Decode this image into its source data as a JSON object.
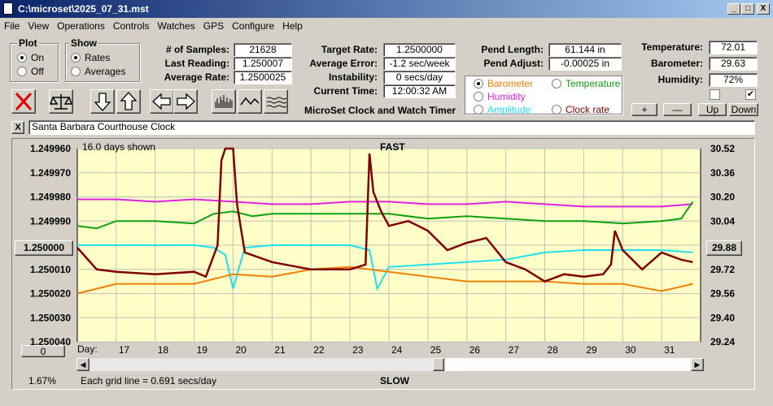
{
  "window": {
    "title": "C:\\microset\\2025_07_31.mst",
    "min": "_",
    "max": "□",
    "close": "X"
  },
  "menu": [
    "File",
    "View",
    "Operations",
    "Controls",
    "Watches",
    "GPS",
    "Configure",
    "Help"
  ],
  "plot_group": {
    "title": "Plot",
    "on": "On",
    "off": "Off"
  },
  "show_group": {
    "title": "Show",
    "rates": "Rates",
    "averages": "Averages"
  },
  "stats": {
    "samples_label": "# of Samples:",
    "samples": "21628",
    "last_label": "Last Reading:",
    "last": "1.250007",
    "avg_rate_label": "Average Rate:",
    "avg_rate": "1.2500025",
    "target_label": "Target Rate:",
    "target": "1.2500000",
    "avg_err_label": "Average Error:",
    "avg_err": "-1.2 sec/week",
    "instab_label": "Instability:",
    "instab": "0 secs/day",
    "time_label": "Current Time:",
    "time": "12:00:32 AM",
    "pend_len_label": "Pend Length:",
    "pend_len": "61.144 in",
    "pend_adj_label": "Pend Adjust:",
    "pend_adj": "-0.00025 in",
    "temp_label": "Temperature:",
    "temp": "72.01",
    "baro_label": "Barometer:",
    "baro": "29.63",
    "hum_label": "Humidity:",
    "hum": "72%"
  },
  "app_name": "MicroSet Clock and Watch Timer",
  "sensor_options": {
    "barometer": "Barometer",
    "temperature": "Temperature",
    "humidity": "Humidity",
    "amplitude": "Amplitude",
    "clock_rate": "Clock rate"
  },
  "adjust_buttons": {
    "plus": "+",
    "minus": "—",
    "up": "Up",
    "down": "Down"
  },
  "watch_name": "Santa Barbara Courthouse Clock",
  "close_x": "X",
  "colors": {
    "barometer": "#f08000",
    "temperature": "#10a010",
    "humidity": "#e020e0",
    "amplitude": "#20e0f0",
    "clock_rate": "#800000",
    "plot_bg": "#ffffc8"
  },
  "chart_data": {
    "type": "line",
    "days_shown": "16.0 days shown",
    "top_label": "FAST",
    "bottom_label": "SLOW",
    "day_label": "Day:",
    "grid_note": "Each grid line = 0.691 secs/day",
    "percent": "1.67%",
    "center_button": "1.250000",
    "right_button": "29.88",
    "zero_button": "0",
    "y_left_ticks": [
      "1.249960",
      "1.249970",
      "1.249980",
      "1.249990",
      "1.250000",
      "1.250010",
      "1.250020",
      "1.250030",
      "1.250040"
    ],
    "y_right_ticks": [
      "30.52",
      "30.36",
      "30.20",
      "30.04",
      "29.88",
      "29.72",
      "29.56",
      "29.40",
      "29.24"
    ],
    "x_ticks": [
      "17",
      "18",
      "19",
      "20",
      "21",
      "22",
      "23",
      "24",
      "25",
      "26",
      "27",
      "28",
      "29",
      "30",
      "31"
    ],
    "x_range": [
      16.0,
      32.0
    ],
    "ylim_left": [
      1.24996,
      1.25004
    ],
    "series": [
      {
        "name": "Humidity",
        "key": "humidity",
        "x": [
          16,
          17,
          18,
          19,
          20,
          21,
          22,
          23,
          24,
          25,
          26,
          27,
          28,
          29,
          30,
          31,
          31.8
        ],
        "y": [
          1.249981,
          1.249981,
          1.249982,
          1.249981,
          1.249982,
          1.249983,
          1.249983,
          1.249982,
          1.249982,
          1.249983,
          1.249983,
          1.249982,
          1.249983,
          1.249984,
          1.249984,
          1.249984,
          1.249983
        ]
      },
      {
        "name": "Temperature",
        "key": "temperature",
        "x": [
          16,
          16.5,
          17,
          18,
          19,
          19.5,
          20,
          20.5,
          21,
          22,
          23,
          24,
          25,
          26,
          27,
          28,
          29,
          30,
          31,
          31.5,
          31.8
        ],
        "y": [
          1.249992,
          1.249993,
          1.24999,
          1.24999,
          1.249991,
          1.249987,
          1.249986,
          1.249988,
          1.249987,
          1.249987,
          1.249987,
          1.249987,
          1.249989,
          1.249988,
          1.249989,
          1.24999,
          1.24999,
          1.249991,
          1.24999,
          1.249989,
          1.249982
        ]
      },
      {
        "name": "Amplitude",
        "key": "amplitude",
        "x": [
          16,
          17,
          18,
          19,
          19.5,
          19.8,
          20,
          20.3,
          21,
          22,
          23,
          23.5,
          23.7,
          24,
          25,
          26,
          27,
          28,
          29,
          30,
          31,
          31.8
        ],
        "y": [
          1.25,
          1.25,
          1.25,
          1.25,
          1.250001,
          1.250004,
          1.250018,
          1.250001,
          1.25,
          1.25,
          1.25,
          1.250002,
          1.250018,
          1.250009,
          1.250008,
          1.250007,
          1.250006,
          1.250003,
          1.250002,
          1.250002,
          1.250002,
          1.250003
        ]
      },
      {
        "name": "Barometer",
        "key": "barometer",
        "x": [
          16,
          17,
          18,
          19,
          20,
          21,
          22,
          23,
          24,
          25,
          26,
          27,
          28,
          29,
          30,
          31,
          31.8
        ],
        "y": [
          1.25002,
          1.250016,
          1.250016,
          1.250016,
          1.250012,
          1.250013,
          1.25001,
          1.250009,
          1.250011,
          1.250013,
          1.250015,
          1.250015,
          1.250015,
          1.250016,
          1.250016,
          1.250019,
          1.250016
        ]
      },
      {
        "name": "Clock rate",
        "key": "clock_rate",
        "x": [
          16,
          16.5,
          17,
          18,
          19,
          19.3,
          19.6,
          19.7,
          19.8,
          20.0,
          20.1,
          20.3,
          21,
          22,
          23,
          23.4,
          23.5,
          23.6,
          23.8,
          24,
          24.5,
          25,
          25.5,
          26,
          26.5,
          27,
          27.5,
          28,
          28.5,
          29,
          29.5,
          29.7,
          29.8,
          30,
          30.5,
          31,
          31.5,
          31.8
        ],
        "y": [
          1.250001,
          1.25001,
          1.250011,
          1.250012,
          1.250011,
          1.250013,
          1.25,
          1.249965,
          1.24996,
          1.24996,
          1.249983,
          1.250003,
          1.250007,
          1.25001,
          1.25001,
          1.250008,
          1.249962,
          1.249978,
          1.249986,
          1.249992,
          1.24999,
          1.249994,
          1.250002,
          1.249999,
          1.249997,
          1.250007,
          1.25001,
          1.250015,
          1.250012,
          1.250013,
          1.250012,
          1.250008,
          1.249994,
          1.250002,
          1.25001,
          1.250003,
          1.250006,
          1.250007
        ]
      }
    ]
  }
}
